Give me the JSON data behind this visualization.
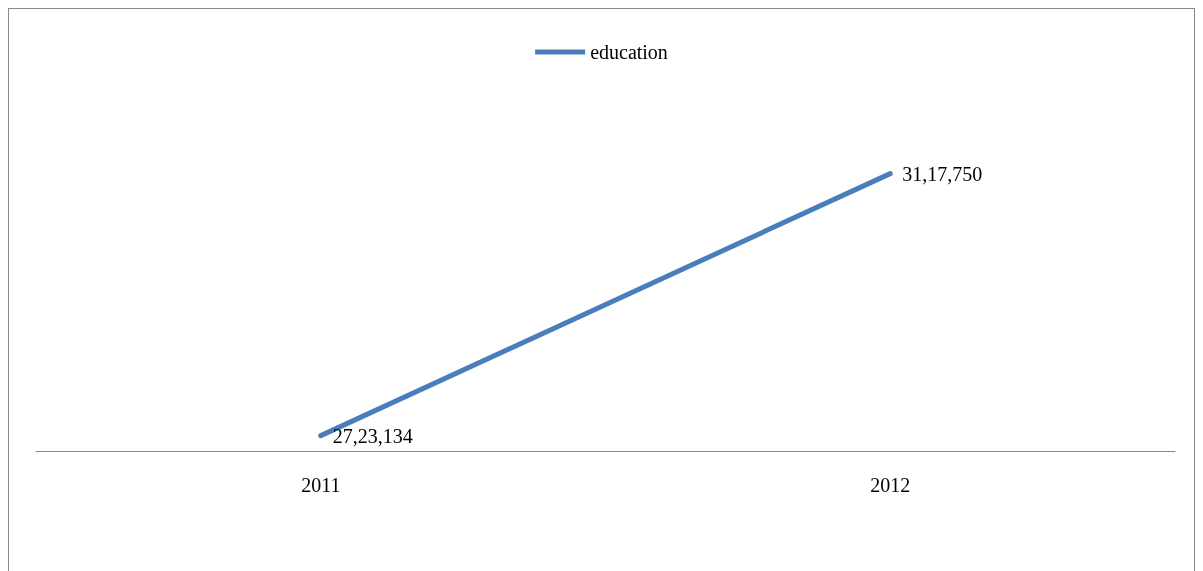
{
  "chart_data": {
    "type": "line",
    "categories": [
      "2011",
      "2012"
    ],
    "series": [
      {
        "name": "education",
        "color": "#4a7ebb",
        "values": [
          2723134,
          3117750
        ],
        "value_labels": [
          "27,23,134",
          "31,17,750"
        ]
      }
    ],
    "tick_labels": "x",
    "grid": false,
    "legend": "top",
    "marker": "none",
    "line_style": "solid"
  }
}
